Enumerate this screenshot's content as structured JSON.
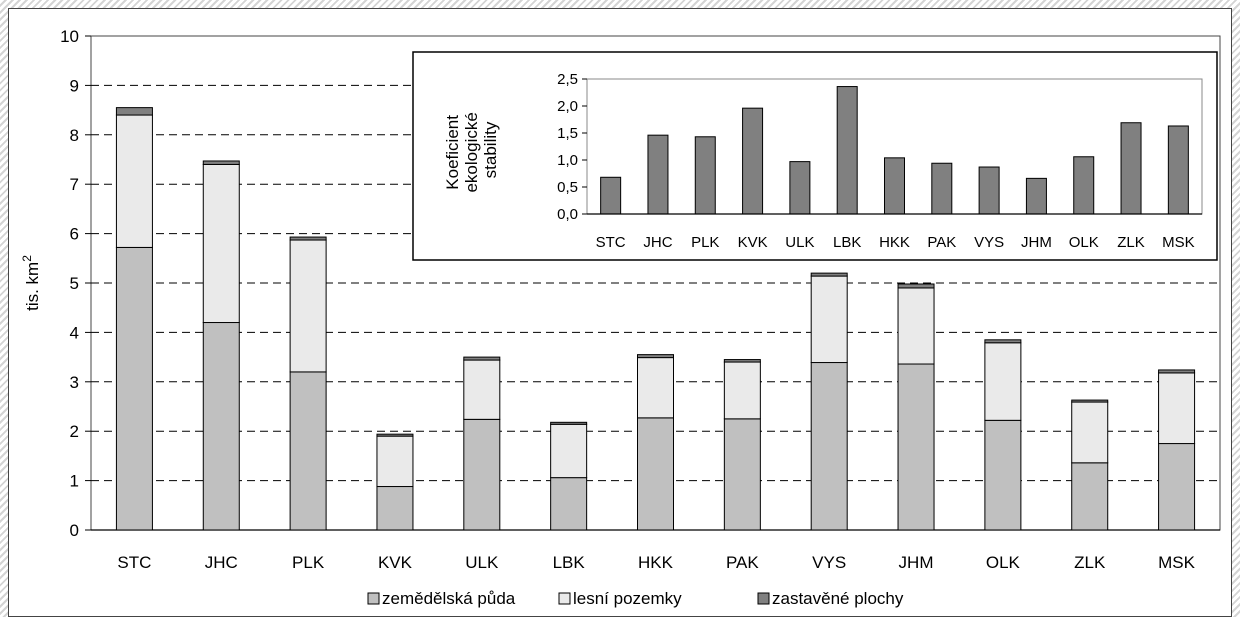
{
  "chart_data": [
    {
      "type": "bar",
      "stacked": true,
      "categories": [
        "STC",
        "JHC",
        "PLK",
        "KVK",
        "ULK",
        "LBK",
        "HKK",
        "PAK",
        "VYS",
        "JHM",
        "OLK",
        "ZLK",
        "MSK"
      ],
      "series": [
        {
          "name": "zemědělská půda",
          "color": "#c0c0c0",
          "values": [
            5.72,
            4.2,
            3.2,
            0.88,
            2.24,
            1.06,
            2.27,
            2.25,
            3.39,
            3.36,
            2.22,
            1.36,
            1.75
          ]
        },
        {
          "name": "lesní pozemky",
          "color": "#eaeaea",
          "values": [
            2.68,
            3.2,
            2.67,
            1.02,
            1.2,
            1.08,
            1.22,
            1.15,
            1.75,
            1.54,
            1.57,
            1.23,
            1.43
          ]
        },
        {
          "name": "zastavěné plochy",
          "color": "#808080",
          "values": [
            0.15,
            0.07,
            0.06,
            0.04,
            0.06,
            0.04,
            0.06,
            0.05,
            0.06,
            0.08,
            0.06,
            0.04,
            0.06
          ]
        }
      ],
      "ylabel": "tis. km",
      "ylabel_sup": "2",
      "ylim": [
        0,
        10
      ],
      "yticks": [
        "0",
        "1",
        "2",
        "3",
        "4",
        "5",
        "6",
        "7",
        "8",
        "9",
        "10"
      ],
      "grid": true,
      "legend": "bottom"
    },
    {
      "type": "bar",
      "categories": [
        "STC",
        "JHC",
        "PLK",
        "KVK",
        "ULK",
        "LBK",
        "HKK",
        "PAK",
        "VYS",
        "JHM",
        "OLK",
        "ZLK",
        "MSK"
      ],
      "values": [
        0.68,
        1.46,
        1.43,
        1.96,
        0.97,
        2.36,
        1.04,
        0.94,
        0.87,
        0.66,
        1.06,
        1.69,
        1.63
      ],
      "color": "#808080",
      "ylabel_lines": [
        "Koeficient",
        "ekologické",
        "stability"
      ],
      "ylim": [
        0,
        2.5
      ],
      "yticks": [
        "0,0",
        "0,5",
        "1,0",
        "1,5",
        "2,0",
        "2,5"
      ],
      "grid": false
    }
  ]
}
